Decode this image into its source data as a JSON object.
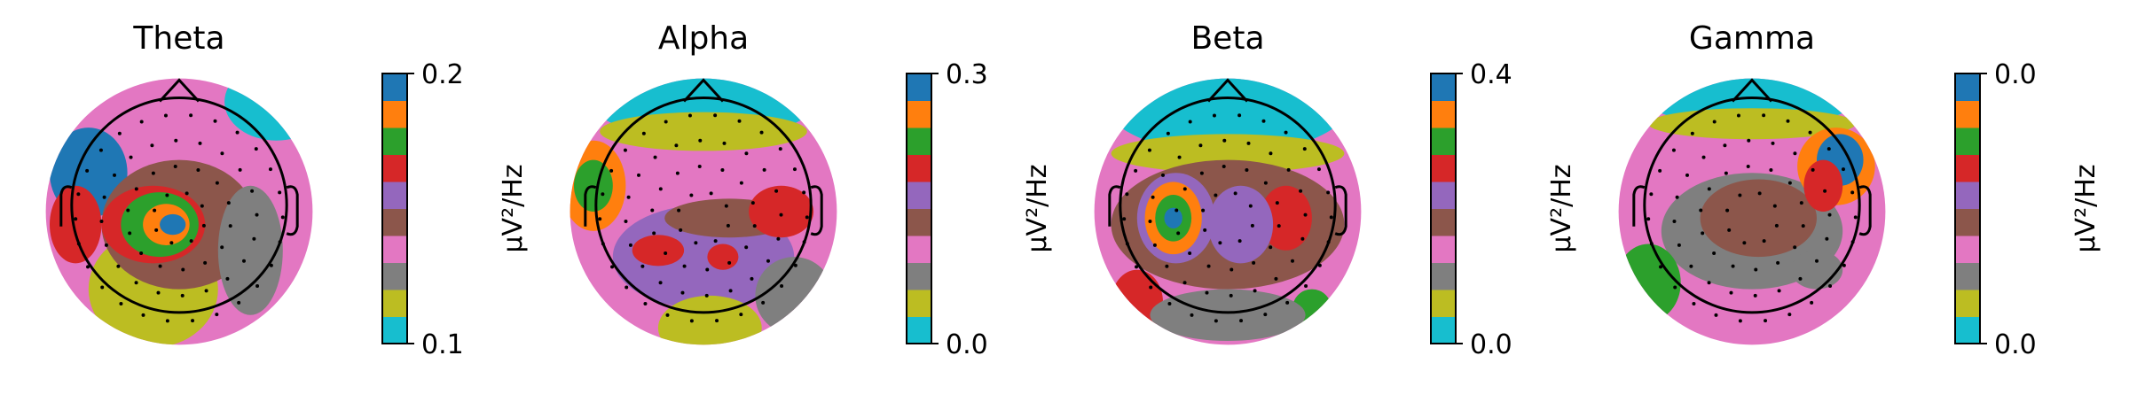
{
  "chart_data": [
    {
      "type": "topomap",
      "title": "Theta",
      "colorbar_label": "µV²/Hz",
      "ylim": [
        0.1,
        0.2
      ],
      "yticks": [
        0.1,
        0.2
      ],
      "colors": [
        "#17becf",
        "#bcbd22",
        "#7f7f7f",
        "#e377c2",
        "#8c564b",
        "#9467bd",
        "#d62728",
        "#2ca02c",
        "#ff7f0e",
        "#1f77b4"
      ]
    },
    {
      "type": "topomap",
      "title": "Alpha",
      "colorbar_label": "µV²/Hz",
      "ylim": [
        0,
        0.3
      ],
      "yticks": [
        {
          "value": 0,
          "label": "0.0"
        },
        0.3
      ],
      "colors": [
        "#17becf",
        "#bcbd22",
        "#7f7f7f",
        "#e377c2",
        "#8c564b",
        "#9467bd",
        "#d62728",
        "#2ca02c",
        "#ff7f0e",
        "#1f77b4"
      ]
    },
    {
      "type": "topomap",
      "title": "Beta",
      "colorbar_label": "µV²/Hz",
      "ylim": [
        0,
        0.4
      ],
      "yticks": [
        {
          "value": 0,
          "label": "0.0"
        },
        0.4
      ],
      "colors": [
        "#17becf",
        "#bcbd22",
        "#7f7f7f",
        "#e377c2",
        "#8c564b",
        "#9467bd",
        "#d62728",
        "#2ca02c",
        "#ff7f0e",
        "#1f77b4"
      ]
    },
    {
      "type": "topomap",
      "title": "Gamma",
      "colorbar_label": "µV²/Hz",
      "ylim": [
        0.01,
        0.04
      ],
      "yticks": [
        {
          "value": 0.01,
          "label": "0.0"
        },
        {
          "value": 0.04,
          "label": "0.0"
        }
      ],
      "colors": [
        "#17becf",
        "#bcbd22",
        "#7f7f7f",
        "#e377c2",
        "#8c564b",
        "#9467bd",
        "#d62728",
        "#2ca02c",
        "#ff7f0e",
        "#1f77b4"
      ]
    }
  ]
}
